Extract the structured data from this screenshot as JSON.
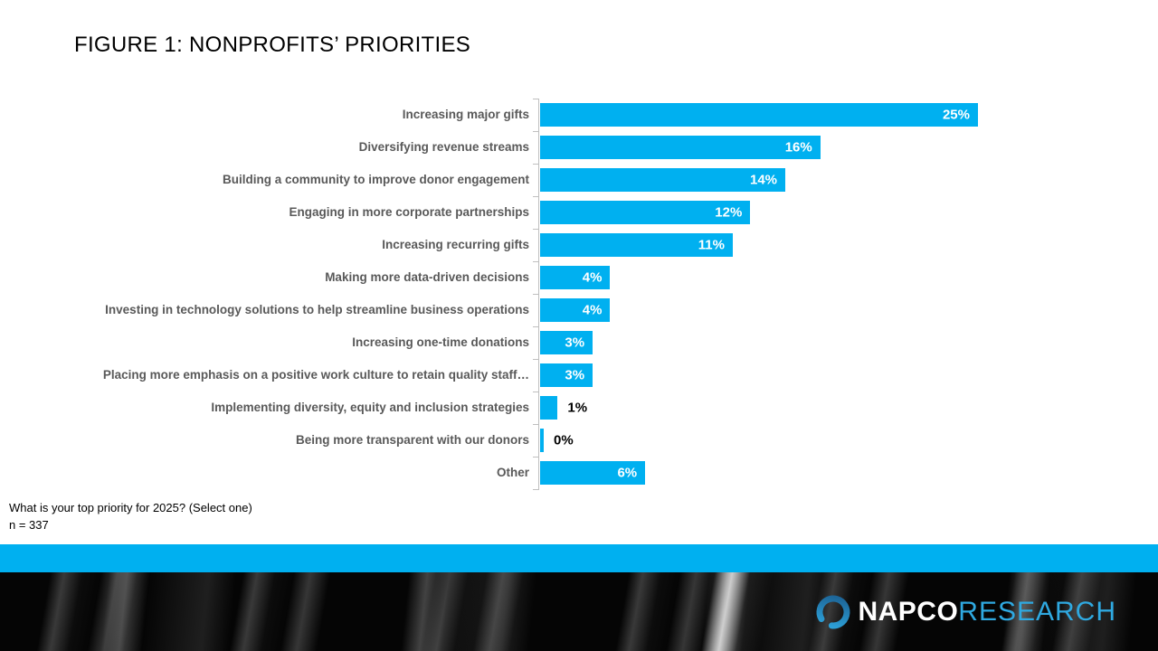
{
  "header": {
    "title": "FIGURE 1: NONPROFITS’ PRIORITIES"
  },
  "chart_data": {
    "type": "bar",
    "orientation": "horizontal",
    "title": "FIGURE 1: NONPROFITS’ PRIORITIES",
    "categories": [
      "Increasing major gifts",
      "Diversifying revenue streams",
      "Building a community to improve donor engagement",
      "Engaging in more corporate partnerships",
      "Increasing recurring gifts",
      "Making more data-driven decisions",
      "Investing in technology solutions to help streamline business operations",
      "Increasing one-time donations",
      "Placing more emphasis on a positive work culture to retain quality staff…",
      "Implementing diversity, equity and inclusion strategies",
      "Being more transparent with our donors",
      "Other"
    ],
    "values": [
      25,
      16,
      14,
      12,
      11,
      4,
      4,
      3,
      3,
      1,
      0,
      6
    ],
    "value_labels": [
      "25%",
      "16%",
      "14%",
      "12%",
      "11%",
      "4%",
      "4%",
      "3%",
      "3%",
      "1%",
      "0%",
      "6%"
    ],
    "xlim": [
      0,
      25
    ],
    "grid": false,
    "legend": false,
    "colors": {
      "bar": "#00B0F0",
      "category_label": "#595959",
      "value_inside": "#FFFFFF",
      "value_outside": "#000000",
      "axis": "#BFBFBF"
    }
  },
  "footnote": {
    "question": "What is your top priority for 2025? (Select one)",
    "sample_size": "n = 337"
  },
  "footer": {
    "band_color": "#00B0F0",
    "brand": {
      "napco": "NAPCO",
      "research": "RESEARCH",
      "research_color": "#2FA9E1",
      "ring_color_dark": "#1B5E90",
      "ring_color_light": "#2FA9E1"
    }
  }
}
